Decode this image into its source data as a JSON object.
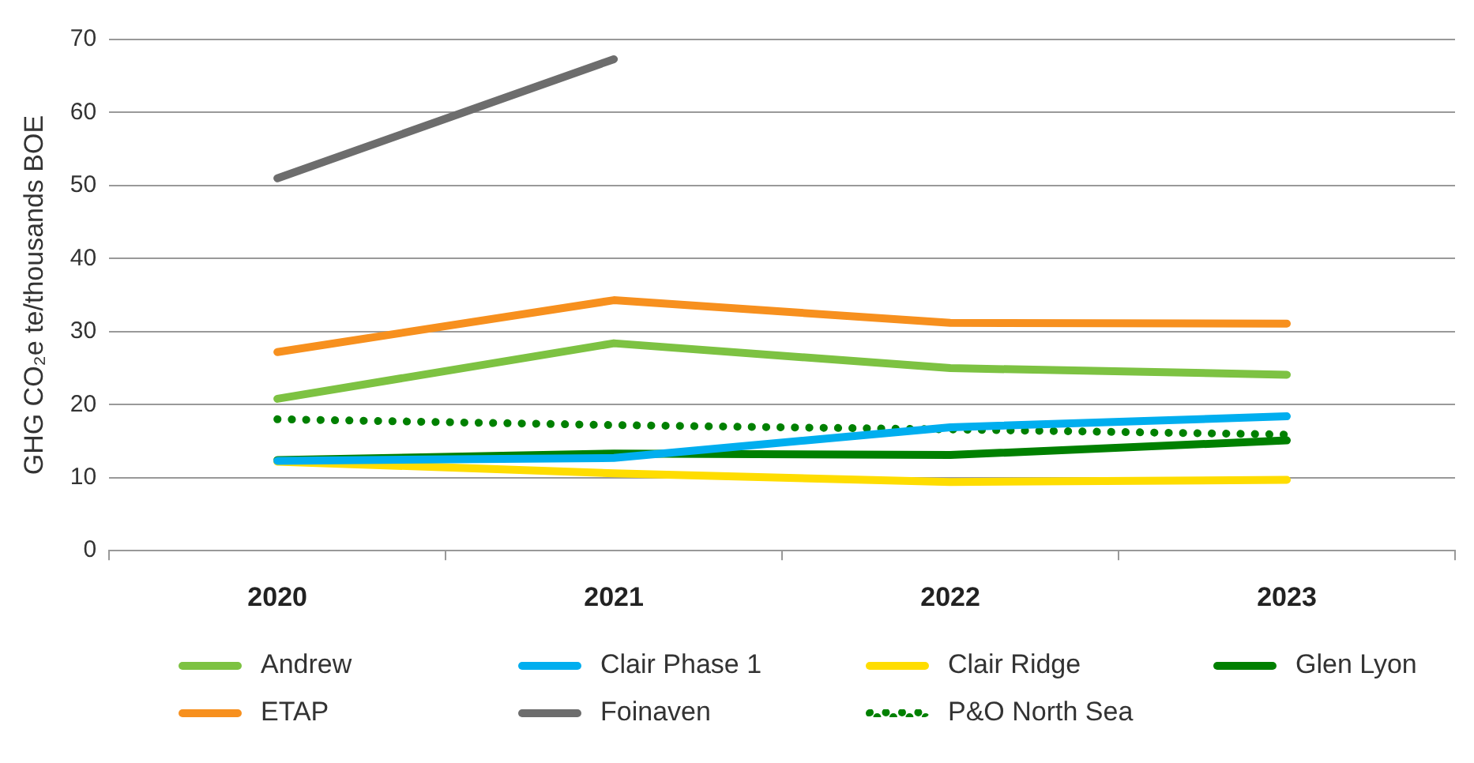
{
  "chart_data": {
    "type": "line",
    "ylabel": "GHG CO₂e te/thousands BOE",
    "categories": [
      "2020",
      "2021",
      "2022",
      "2023"
    ],
    "series": [
      {
        "name": "Andrew",
        "color": "#7dc242",
        "values": [
          20.8,
          28.4,
          25,
          24.1
        ]
      },
      {
        "name": "Clair Phase 1",
        "color": "#00aeef",
        "values": [
          12.3,
          12.7,
          16.9,
          18.4
        ]
      },
      {
        "name": "Clair Ridge",
        "color": "#ffdd00",
        "values": [
          12.2,
          10.6,
          9.4,
          9.7
        ]
      },
      {
        "name": "Glen Lyon",
        "color": "#008000",
        "values": [
          12.4,
          13.3,
          13.1,
          15.1
        ]
      },
      {
        "name": "ETAP",
        "color": "#f7901e",
        "values": [
          27.2,
          34.3,
          31.2,
          31.1
        ]
      },
      {
        "name": "Foinaven",
        "color": "#6d6d6d",
        "values": [
          51,
          67.3,
          null,
          null
        ]
      },
      {
        "name": "P&O North Sea",
        "color": "#008000",
        "values": [
          18,
          17.2,
          16.6,
          15.9
        ],
        "line_style": "dotted"
      }
    ],
    "ylim": [
      0,
      70
    ],
    "yticks": [
      0,
      10,
      20,
      30,
      40,
      50,
      60,
      70
    ],
    "grid": "y",
    "legend": "bottom",
    "marker": "none",
    "line_style": "solid"
  }
}
